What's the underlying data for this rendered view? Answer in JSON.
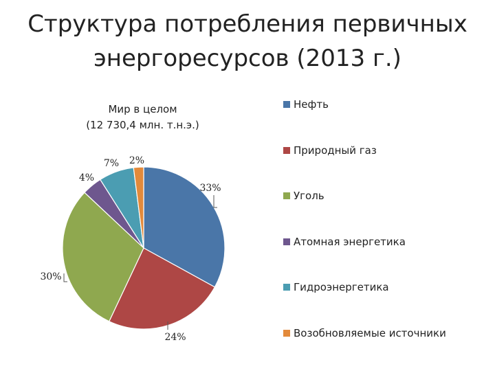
{
  "title": {
    "line1": "Структура потребления первичных",
    "line2": "энергоресурсов (2013 г.)"
  },
  "chart_data": {
    "type": "pie",
    "title_line1": "Мир в целом",
    "title_line2": "(12 730,4 млн. т.н.э.)",
    "legend_position": "right",
    "series": [
      {
        "name": "Нефть",
        "value": 33,
        "label": "33%",
        "color": "#4A76A8"
      },
      {
        "name": "Природный газ",
        "value": 24,
        "label": "24%",
        "color": "#AE4745"
      },
      {
        "name": "Уголь",
        "value": 30,
        "label": "30%",
        "color": "#8FA84F"
      },
      {
        "name": "Атомная энергетика",
        "value": 4,
        "label": "4%",
        "color": "#6E578E"
      },
      {
        "name": "Гидроэнергетика",
        "value": 7,
        "label": "7%",
        "color": "#4B9DB2"
      },
      {
        "name": "Возобновляемые источники",
        "value": 2,
        "label": "2%",
        "color": "#E38A3B"
      }
    ]
  }
}
